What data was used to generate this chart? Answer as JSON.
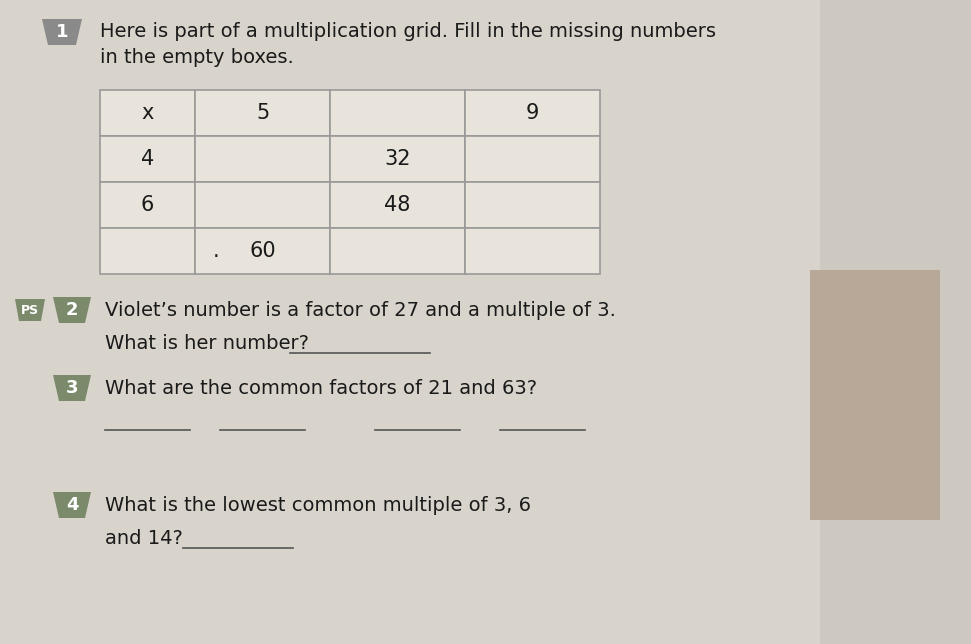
{
  "bg_color": "#cdc9c1",
  "white_cell": "#e8e4dc",
  "empty_cell": "#dedad2",
  "label_bg_1": "#8a8a8a",
  "label_bg_2": "#7a8a6a",
  "label_bg_3": "#7a8a6a",
  "label_bg_4": "#7a8a6a",
  "ps_color": "#7a8a6a",
  "text_color": "#1a1a1a",
  "grid_line_color": "#999999",
  "q1_label": "1",
  "q2_label": "2",
  "q3_label": "3",
  "q4_label": "4",
  "ps_label": "PS",
  "title_line1": "Here is part of a multiplication grid. Fill in the missing numbers",
  "title_line2": "in the empty boxes.",
  "q2_line1": "Violet’s number is a factor of 27 and a multiple of 3.",
  "q2_line2": "What is her number?",
  "q3_line1": "What are the common factors of 21 and 63?",
  "q4_line1": "What is the lowest common multiple of 3, 6",
  "q4_line2": "and 14?",
  "grid_headers": [
    "x",
    "5",
    "",
    "9"
  ],
  "grid_row1": [
    "4",
    "",
    "32",
    ""
  ],
  "grid_row2": [
    "6",
    "",
    "48",
    ""
  ],
  "grid_row3": [
    "",
    "60",
    "",
    ""
  ],
  "font_size_title": 14,
  "font_size_body": 14,
  "font_size_grid": 15,
  "font_size_label": 12
}
